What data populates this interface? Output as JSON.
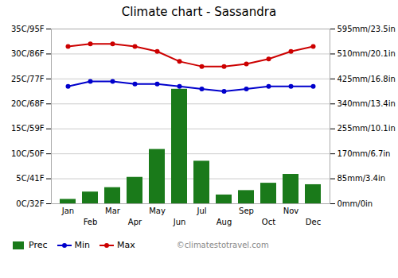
{
  "chart_data": {
    "type": "bar",
    "title": "Climate chart - Sassandra",
    "categories": [
      "Jan",
      "Feb",
      "Mar",
      "Apr",
      "May",
      "Jun",
      "Jul",
      "Aug",
      "Sep",
      "Oct",
      "Nov",
      "Dec"
    ],
    "series": [
      {
        "name": "Prec",
        "type": "bar",
        "axis": "y2",
        "color": "#1a7a1a",
        "values": [
          15,
          40,
          55,
          90,
          185,
          390,
          145,
          30,
          45,
          70,
          100,
          65
        ]
      },
      {
        "name": "Min",
        "type": "line",
        "color": "#0000cc",
        "marker": "circle",
        "values": [
          23.5,
          24.5,
          24.5,
          24.0,
          24.0,
          23.5,
          23.0,
          22.5,
          23.0,
          23.5,
          23.5,
          23.5
        ]
      },
      {
        "name": "Max",
        "type": "line",
        "color": "#cc0000",
        "marker": "circle",
        "values": [
          31.5,
          32.0,
          32.0,
          31.5,
          30.5,
          28.5,
          27.5,
          27.5,
          28.0,
          29.0,
          30.5,
          31.5
        ]
      }
    ],
    "ylim": [
      0,
      35
    ],
    "yticks": [
      {
        "value": 0,
        "label": "0C/32F"
      },
      {
        "value": 5,
        "label": "5C/41F"
      },
      {
        "value": 10,
        "label": "10C/50F"
      },
      {
        "value": 15,
        "label": "15C/59F"
      },
      {
        "value": 20,
        "label": "20C/68F"
      },
      {
        "value": 25,
        "label": "25C/77F"
      },
      {
        "value": 30,
        "label": "30C/86F"
      },
      {
        "value": 35,
        "label": "35C/95F"
      }
    ],
    "y2lim": [
      0,
      595
    ],
    "y2ticks": [
      {
        "value": 0,
        "label": "0mm/0in"
      },
      {
        "value": 85,
        "label": "85mm/3.4in"
      },
      {
        "value": 170,
        "label": "170mm/6.7in"
      },
      {
        "value": 255,
        "label": "255mm/10.1in"
      },
      {
        "value": 340,
        "label": "340mm/13.4in"
      },
      {
        "value": 425,
        "label": "425mm/16.8in"
      },
      {
        "value": 510,
        "label": "510mm/20.1in"
      },
      {
        "value": 595,
        "label": "595mm/23.5in"
      }
    ],
    "grid": true,
    "legend": "lower left",
    "annotations": [
      "©climatestotravel.com"
    ]
  }
}
